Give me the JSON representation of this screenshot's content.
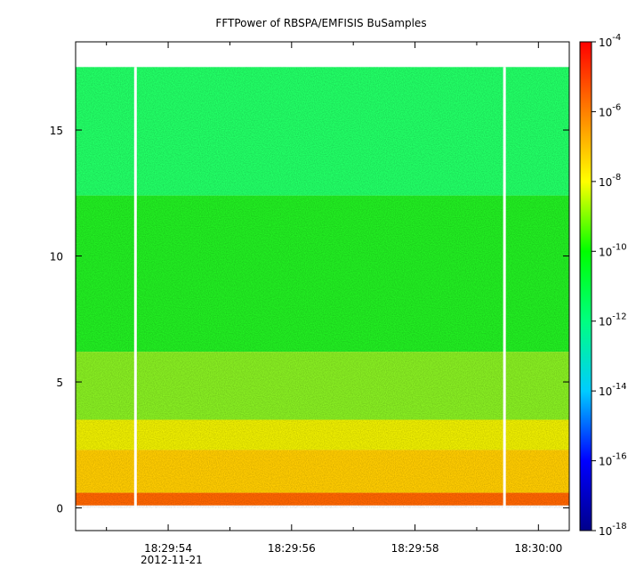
{
  "chart_data": {
    "type": "heatmap",
    "title": "FFTPower of RBSPA/EMFISIS  BuSamples",
    "xlabel": "",
    "ylabel": "",
    "x": {
      "ticks": [
        "18:29:54",
        "18:29:56",
        "18:29:58",
        "18:30:00"
      ],
      "date_label": "2012-11-21",
      "range": [
        "18:29:52.50",
        "18:30:00.50"
      ],
      "minor_ticks": [
        "18:29:53",
        "18:29:55",
        "18:29:57",
        "18:29:59"
      ]
    },
    "y": {
      "ticks": [
        0,
        5,
        10,
        15
      ],
      "range": [
        -0.9,
        18.5
      ],
      "data_extent": [
        0,
        17.5
      ]
    },
    "z": {
      "scale": "log",
      "range": [
        1e-18,
        0.0001
      ],
      "tick_exponents": [
        -4,
        -6,
        -8,
        -10,
        -12,
        -14,
        -16,
        -18
      ],
      "colormap": [
        "#00008b",
        "#0000ff",
        "#00ccff",
        "#00ff80",
        "#00ff00",
        "#ffff00",
        "#ff8000",
        "#ff0000"
      ]
    },
    "bands": [
      {
        "y_from": 17.5,
        "y_to": 12.4,
        "color": "#22ff66"
      },
      {
        "y_from": 12.4,
        "y_to": 6.2,
        "color": "#22ee22"
      },
      {
        "y_from": 6.2,
        "y_to": 3.5,
        "color": "#88ee22"
      },
      {
        "y_from": 3.5,
        "y_to": 2.3,
        "color": "#eeee00"
      },
      {
        "y_from": 2.3,
        "y_to": 0.6,
        "color": "#ffcc00"
      },
      {
        "y_from": 0.6,
        "y_to": 0.1,
        "color": "#ff6600"
      }
    ],
    "gaps": [
      "18:29:53.47",
      "18:29:59.45"
    ]
  }
}
